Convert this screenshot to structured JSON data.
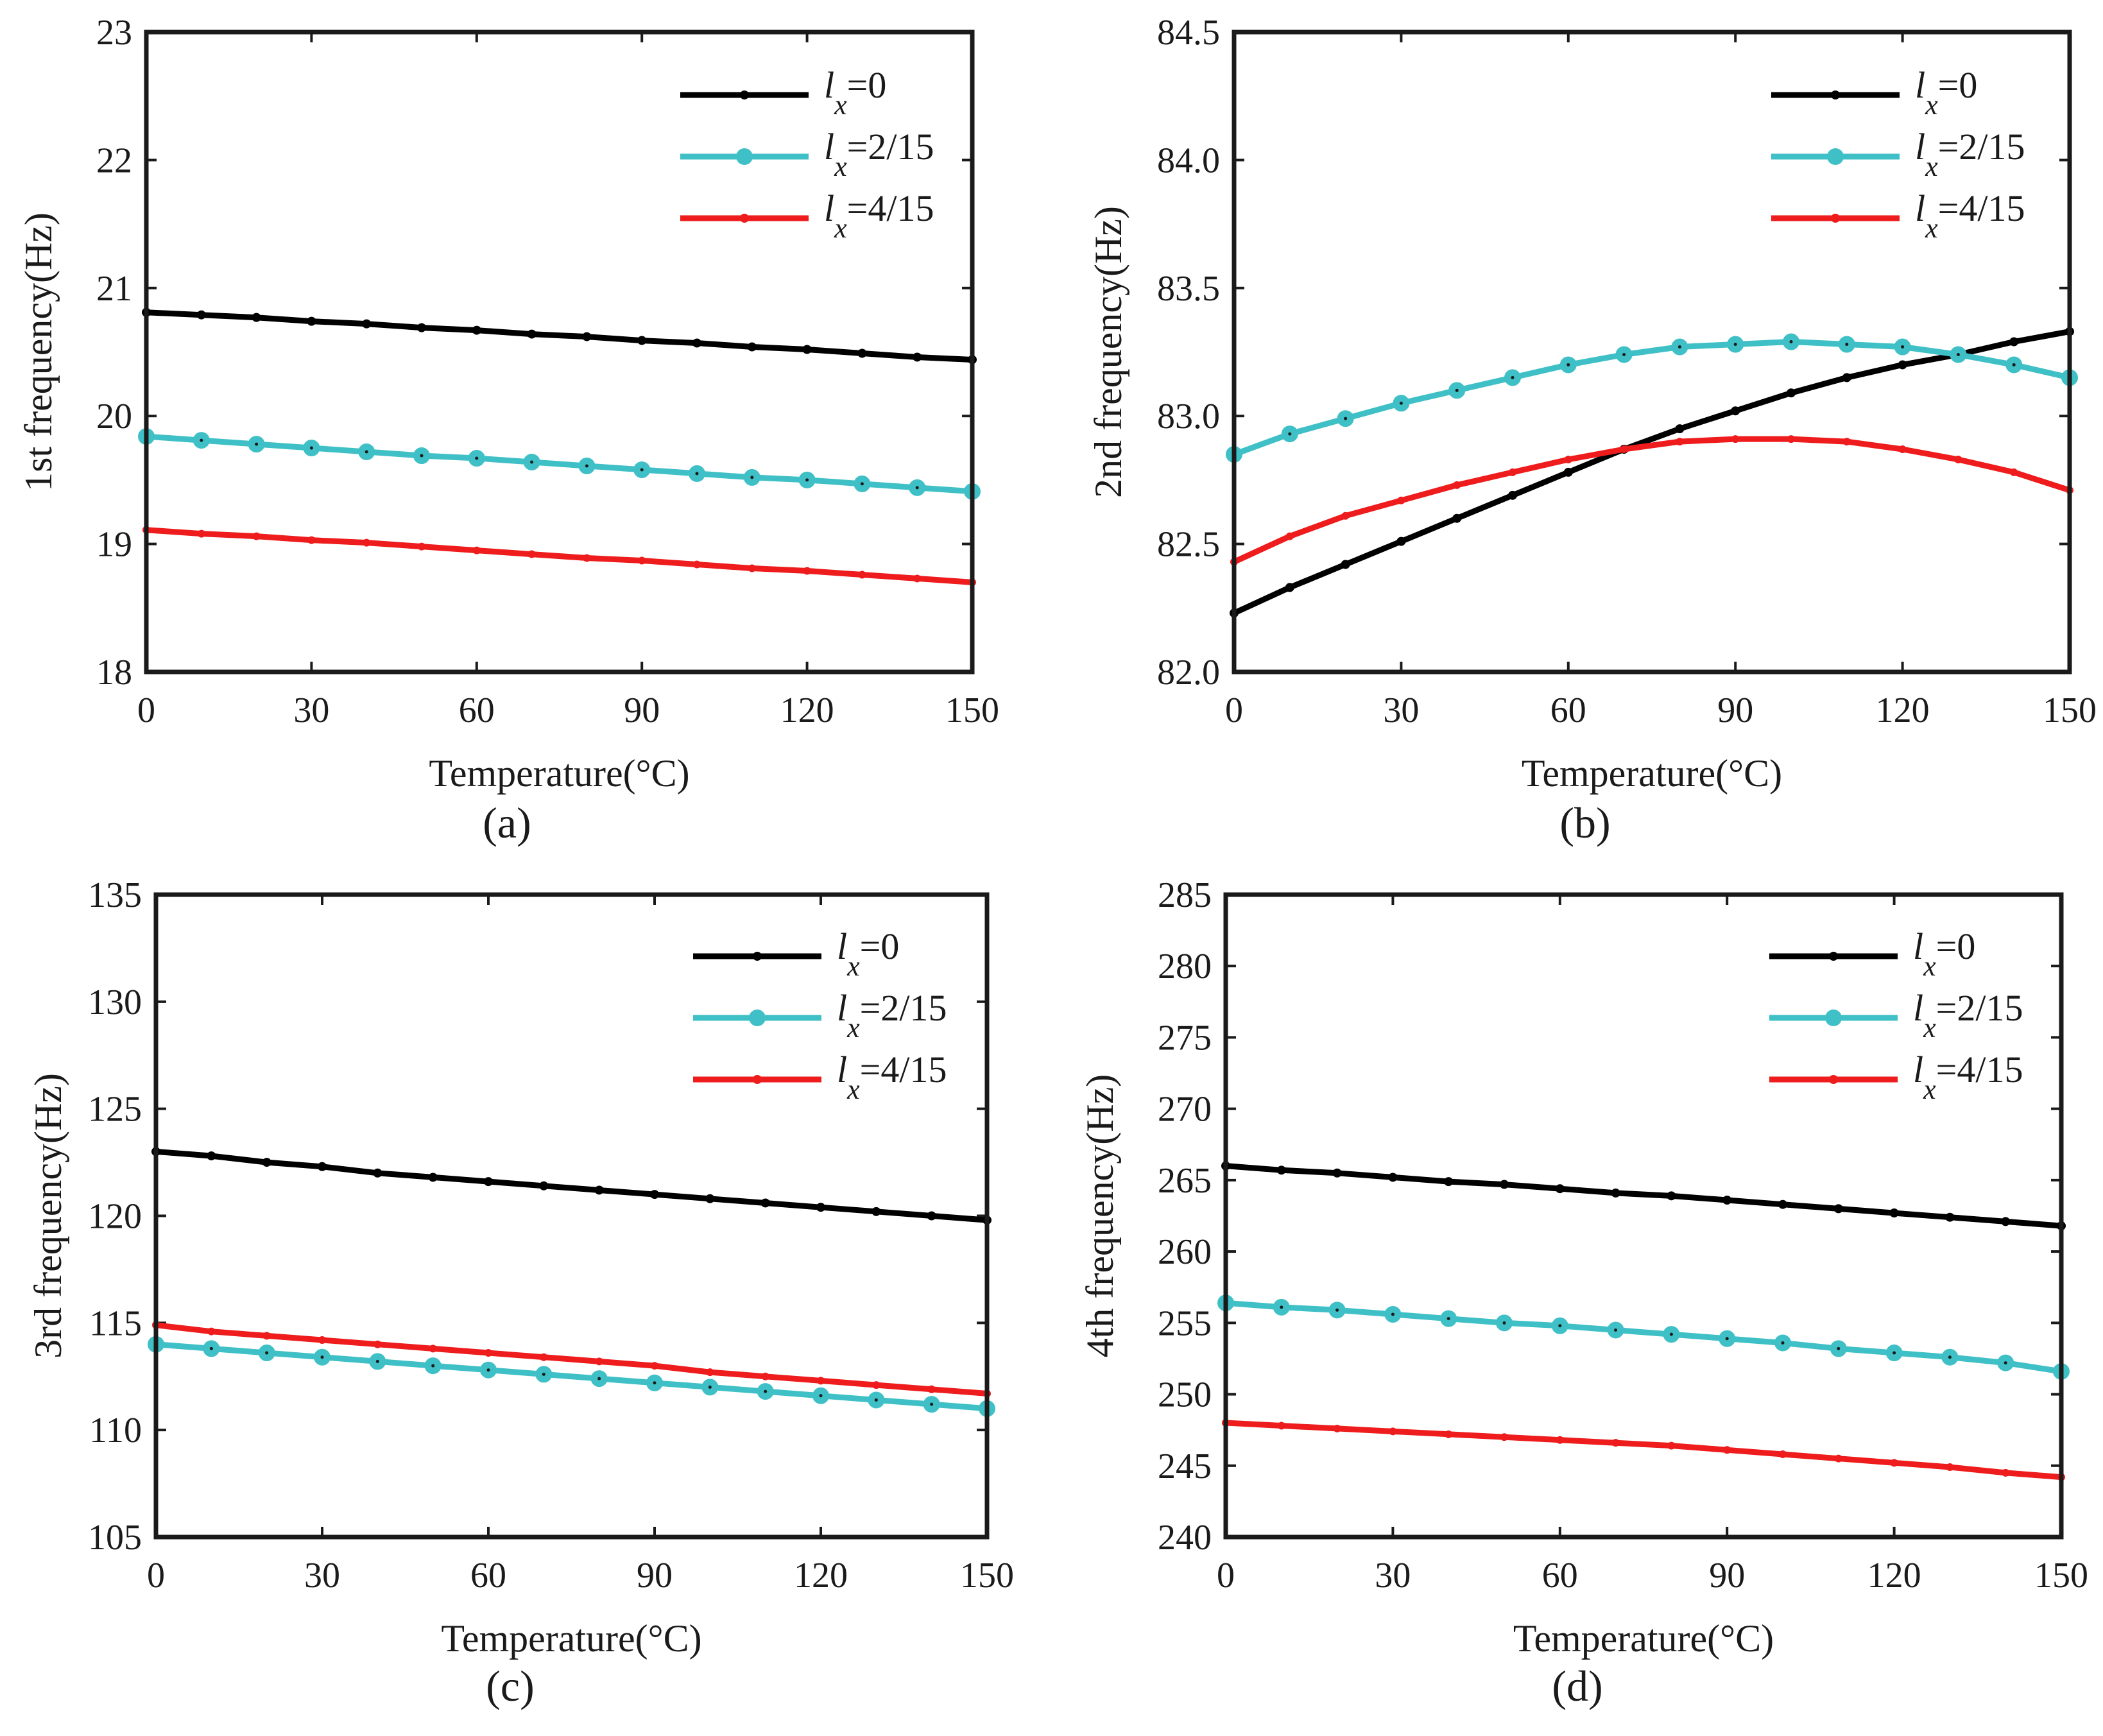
{
  "chart_data": [
    {
      "type": "line",
      "panel_label": "(a)",
      "xlabel": "Temperature(°C)",
      "ylabel": "1st frequency(Hz)",
      "xlim": [
        0,
        150
      ],
      "ylim": [
        18,
        23
      ],
      "xticks": [
        0,
        30,
        60,
        90,
        120,
        150
      ],
      "yticks": [
        "18",
        "19",
        "20",
        "21",
        "22",
        "23"
      ],
      "x": [
        0,
        10,
        20,
        30,
        40,
        50,
        60,
        70,
        80,
        90,
        100,
        110,
        120,
        130,
        140,
        150
      ],
      "legend_position": "top-right",
      "series": [
        {
          "name": "l_x=0",
          "legend_main": "l",
          "legend_sub": "x",
          "legend_rest": "=0",
          "color": "#000000",
          "marker": "dot",
          "values": [
            20.81,
            20.79,
            20.77,
            20.74,
            20.72,
            20.69,
            20.67,
            20.64,
            20.62,
            20.59,
            20.57,
            20.54,
            20.52,
            20.49,
            20.46,
            20.44
          ]
        },
        {
          "name": "l_x=2/15",
          "legend_main": "l",
          "legend_sub": "x",
          "legend_rest": "=2/15",
          "color": "#3fc0c6",
          "marker": "circle",
          "values": [
            19.84,
            19.81,
            19.78,
            19.75,
            19.72,
            19.69,
            19.67,
            19.64,
            19.61,
            19.58,
            19.55,
            19.52,
            19.5,
            19.47,
            19.44,
            19.41
          ]
        },
        {
          "name": "l_x=4/15",
          "legend_main": "l",
          "legend_sub": "x",
          "legend_rest": "=4/15",
          "color": "#ee1c1c",
          "marker": "star",
          "values": [
            19.11,
            19.08,
            19.06,
            19.03,
            19.01,
            18.98,
            18.95,
            18.92,
            18.89,
            18.87,
            18.84,
            18.81,
            18.79,
            18.76,
            18.73,
            18.7
          ]
        }
      ]
    },
    {
      "type": "line",
      "panel_label": "(b)",
      "xlabel": "Temperature(°C)",
      "ylabel": "2nd frequency(Hz)",
      "xlim": [
        0,
        150
      ],
      "ylim": [
        82.0,
        84.5
      ],
      "xticks": [
        0,
        30,
        60,
        90,
        120,
        150
      ],
      "yticks": [
        "82.0",
        "82.5",
        "83.0",
        "83.5",
        "84.0",
        "84.5"
      ],
      "x": [
        0,
        10,
        20,
        30,
        40,
        50,
        60,
        70,
        80,
        90,
        100,
        110,
        120,
        130,
        140,
        150
      ],
      "legend_position": "top-right",
      "series": [
        {
          "name": "l_x=0",
          "legend_main": "l",
          "legend_sub": "x",
          "legend_rest": "=0",
          "color": "#000000",
          "marker": "dot",
          "values": [
            82.23,
            82.33,
            82.42,
            82.51,
            82.6,
            82.69,
            82.78,
            82.87,
            82.95,
            83.02,
            83.09,
            83.15,
            83.2,
            83.24,
            83.29,
            83.33
          ]
        },
        {
          "name": "l_x=2/15",
          "legend_main": "l",
          "legend_sub": "x",
          "legend_rest": "=2/15",
          "color": "#3fc0c6",
          "marker": "circle",
          "values": [
            82.85,
            82.93,
            82.99,
            83.05,
            83.1,
            83.15,
            83.2,
            83.24,
            83.27,
            83.28,
            83.29,
            83.28,
            83.27,
            83.24,
            83.2,
            83.15
          ]
        },
        {
          "name": "l_x=4/15",
          "legend_main": "l",
          "legend_sub": "x",
          "legend_rest": "=4/15",
          "color": "#ee1c1c",
          "marker": "star",
          "values": [
            82.43,
            82.53,
            82.61,
            82.67,
            82.73,
            82.78,
            82.83,
            82.87,
            82.9,
            82.91,
            82.91,
            82.9,
            82.87,
            82.83,
            82.78,
            82.71
          ]
        }
      ]
    },
    {
      "type": "line",
      "panel_label": "(c)",
      "xlabel": "Temperature(°C)",
      "ylabel": "3rd frequency(Hz)",
      "xlim": [
        0,
        150
      ],
      "ylim": [
        105,
        135
      ],
      "xticks": [
        0,
        30,
        60,
        90,
        120,
        150
      ],
      "yticks": [
        "105",
        "110",
        "115",
        "120",
        "125",
        "130",
        "135"
      ],
      "x": [
        0,
        10,
        20,
        30,
        40,
        50,
        60,
        70,
        80,
        90,
        100,
        110,
        120,
        130,
        140,
        150
      ],
      "legend_position": "top-right",
      "series": [
        {
          "name": "l_x=0",
          "legend_main": "l",
          "legend_sub": "x",
          "legend_rest": "=0",
          "color": "#000000",
          "marker": "dot",
          "values": [
            123.0,
            122.8,
            122.5,
            122.3,
            122.0,
            121.8,
            121.6,
            121.4,
            121.2,
            121.0,
            120.8,
            120.6,
            120.4,
            120.2,
            120.0,
            119.8
          ]
        },
        {
          "name": "l_x=2/15",
          "legend_main": "l",
          "legend_sub": "x",
          "legend_rest": "=2/15",
          "color": "#3fc0c6",
          "marker": "circle",
          "values": [
            114.0,
            113.8,
            113.6,
            113.4,
            113.2,
            113.0,
            112.8,
            112.6,
            112.4,
            112.2,
            112.0,
            111.8,
            111.6,
            111.4,
            111.2,
            111.0
          ]
        },
        {
          "name": "l_x=4/15",
          "legend_main": "l",
          "legend_sub": "x",
          "legend_rest": "=4/15",
          "color": "#ee1c1c",
          "marker": "star",
          "values": [
            114.9,
            114.6,
            114.4,
            114.2,
            114.0,
            113.8,
            113.6,
            113.4,
            113.2,
            113.0,
            112.7,
            112.5,
            112.3,
            112.1,
            111.9,
            111.7
          ]
        }
      ]
    },
    {
      "type": "line",
      "panel_label": "(d)",
      "xlabel": "Temperature(°C)",
      "ylabel": "4th frequency(Hz)",
      "xlim": [
        0,
        150
      ],
      "ylim": [
        240,
        285
      ],
      "xticks": [
        0,
        30,
        60,
        90,
        120,
        150
      ],
      "yticks": [
        "240",
        "245",
        "250",
        "255",
        "260",
        "265",
        "270",
        "275",
        "280",
        "285"
      ],
      "x": [
        0,
        10,
        20,
        30,
        40,
        50,
        60,
        70,
        80,
        90,
        100,
        110,
        120,
        130,
        140,
        150
      ],
      "legend_position": "top-right",
      "series": [
        {
          "name": "l_x=0",
          "legend_main": "l",
          "legend_sub": "x",
          "legend_rest": "=0",
          "color": "#000000",
          "marker": "dot",
          "values": [
            266.0,
            265.7,
            265.5,
            265.2,
            264.9,
            264.7,
            264.4,
            264.1,
            263.9,
            263.6,
            263.3,
            263.0,
            262.7,
            262.4,
            262.1,
            261.8
          ]
        },
        {
          "name": "l_x=2/15",
          "legend_main": "l",
          "legend_sub": "x",
          "legend_rest": "=2/15",
          "color": "#3fc0c6",
          "marker": "circle",
          "values": [
            256.4,
            256.1,
            255.9,
            255.6,
            255.3,
            255.0,
            254.8,
            254.5,
            254.2,
            253.9,
            253.6,
            253.2,
            252.9,
            252.6,
            252.2,
            251.6
          ]
        },
        {
          "name": "l_x=4/15",
          "legend_main": "l",
          "legend_sub": "x",
          "legend_rest": "=4/15",
          "color": "#ee1c1c",
          "marker": "star",
          "values": [
            248.0,
            247.8,
            247.6,
            247.4,
            247.2,
            247.0,
            246.8,
            246.6,
            246.4,
            246.1,
            245.8,
            245.5,
            245.2,
            244.9,
            244.5,
            244.2
          ]
        }
      ]
    }
  ]
}
